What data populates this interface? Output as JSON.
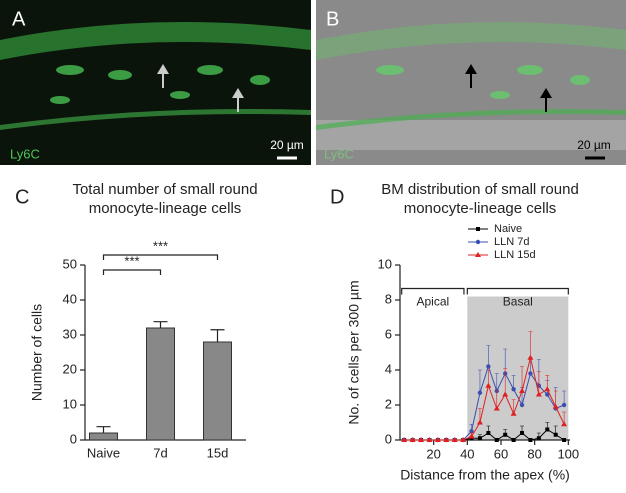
{
  "panels": {
    "A": {
      "label": "A",
      "stain": "Ly6C",
      "scale": "20 µm"
    },
    "B": {
      "label": "B",
      "stain": "Ly6C",
      "scale": "20 µm"
    }
  },
  "chart_data": [
    {
      "type": "bar",
      "panel": "C",
      "title": [
        "Total number of small round",
        "monocyte-lineage cells"
      ],
      "y_label": "Number of cells",
      "categories": [
        "Naive",
        "7d",
        "15d"
      ],
      "values": [
        2,
        32,
        28
      ],
      "errors": [
        1.8,
        1.8,
        3.5
      ],
      "color": "#888888",
      "ylim": [
        0,
        50
      ],
      "yticks": [
        0,
        10,
        20,
        30,
        40,
        50
      ],
      "annotations": [
        {
          "text": "***",
          "between": [
            "Naive",
            "7d"
          ]
        },
        {
          "text": "***",
          "between": [
            "Naive",
            "15d"
          ]
        }
      ]
    },
    {
      "type": "line",
      "panel": "D",
      "title": [
        "BM distribution of small round",
        "monocyte-lineage cells"
      ],
      "x_label": "Distance from the apex (%)",
      "y_label": "No. of cells per 300 µm",
      "x": [
        2.5,
        7.5,
        12.5,
        17.5,
        22.5,
        27.5,
        32.5,
        37.5,
        42.5,
        47.5,
        52.5,
        57.5,
        62.5,
        67.5,
        72.5,
        77.5,
        82.5,
        87.5,
        92.5,
        97.5
      ],
      "series": [
        {
          "name": "Naive",
          "color": "#000000",
          "marker": "square",
          "values": [
            0,
            0,
            0,
            0,
            0,
            0,
            0,
            0,
            0.1,
            0.1,
            0.4,
            0,
            0.3,
            0,
            0.4,
            0,
            0.1,
            0.6,
            0.3,
            0
          ],
          "errors": [
            0,
            0,
            0,
            0,
            0,
            0,
            0,
            0,
            0.1,
            0.2,
            0.4,
            0,
            0.3,
            0,
            0.4,
            0,
            0.3,
            0.4,
            0.5,
            0
          ]
        },
        {
          "name": "LLN 7d",
          "color": "#3b4fb0",
          "marker": "circle",
          "values": [
            0,
            0,
            0,
            0,
            0,
            0,
            0,
            0,
            0.5,
            2.7,
            4.2,
            2.8,
            3.8,
            2.9,
            2.0,
            3.8,
            3.1,
            2.6,
            1.8,
            2.0
          ],
          "errors": [
            0,
            0,
            0,
            0,
            0,
            0,
            0,
            0,
            0.4,
            1.3,
            1.2,
            1.0,
            1.4,
            0.8,
            1.0,
            0.9,
            1.5,
            0.8,
            1.2,
            0.8
          ]
        },
        {
          "name": "LLN 15d",
          "color": "#e02020",
          "marker": "triangle",
          "values": [
            0,
            0,
            0,
            0,
            0,
            0,
            0,
            0,
            0.2,
            1.0,
            3.1,
            1.8,
            2.6,
            1.5,
            2.8,
            4.7,
            2.6,
            2.9,
            1.9,
            0.9
          ],
          "errors": [
            0,
            0,
            0,
            0,
            0,
            0,
            0,
            0,
            0.2,
            0.8,
            0.9,
            1.0,
            1.5,
            0.8,
            1.4,
            1.5,
            1.3,
            0.8,
            0.9,
            0.7
          ]
        }
      ],
      "xlim": [
        0,
        101
      ],
      "xticks": [
        20,
        40,
        60,
        80,
        100
      ],
      "ylim": [
        0,
        10
      ],
      "yticks": [
        0,
        2,
        4,
        6,
        8,
        10
      ],
      "shaded_region": {
        "x": [
          40,
          100
        ],
        "y": [
          0,
          8.2
        ],
        "color": "#cccccc"
      },
      "regions": [
        {
          "text": "Apical",
          "x": [
            1,
            38
          ]
        },
        {
          "text": "Basal",
          "x": [
            40,
            100
          ]
        }
      ]
    }
  ]
}
